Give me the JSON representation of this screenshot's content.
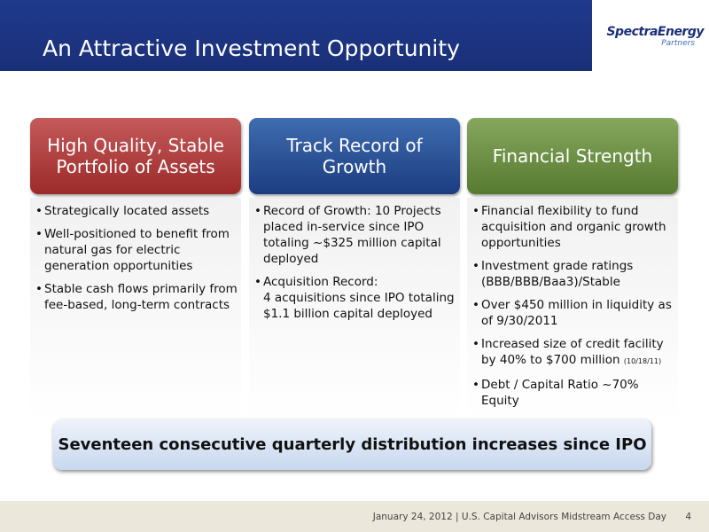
{
  "header": {
    "title": "An Attractive Investment Opportunity",
    "logo": {
      "name": "SpectraEnergy",
      "sub": "Partners"
    }
  },
  "columns": [
    {
      "heading": "High Quality, Stable Portfolio of Assets",
      "color": "red",
      "bullets": [
        {
          "text": "Strategically located assets"
        },
        {
          "text": "Well-positioned to benefit from natural gas for electric generation opportunities"
        },
        {
          "text": "Stable cash flows primarily from fee-based, long-term contracts"
        }
      ]
    },
    {
      "heading": "Track Record of Growth",
      "color": "blue",
      "bullets": [
        {
          "text": "Record of Growth: 10 Projects placed in-service since IPO totaling ~$325 million capital deployed"
        },
        {
          "text": "Acquisition Record:",
          "more": "4 acquisitions since IPO totaling  $1.1 billion capital deployed"
        }
      ]
    },
    {
      "heading": "Financial Strength",
      "color": "green",
      "bullets": [
        {
          "text": "Financial flexibility to fund acquisition and organic growth opportunities"
        },
        {
          "text": "Investment grade ratings (BBB/BBB/Baa3)/Stable"
        },
        {
          "text": "Over $450 million in liquidity as of 9/30/2011"
        },
        {
          "text": "Increased size of credit facility by 40% to $700 million",
          "note": "(10/18/11)"
        },
        {
          "text": "Debt / Capital Ratio ~70% Equity"
        }
      ]
    }
  ],
  "banner": "Seventeen consecutive quarterly distribution increases since IPO",
  "footer": {
    "text": "January 24, 2012 | U.S. Capital Advisors Midstream Access Day",
    "page": "4"
  }
}
